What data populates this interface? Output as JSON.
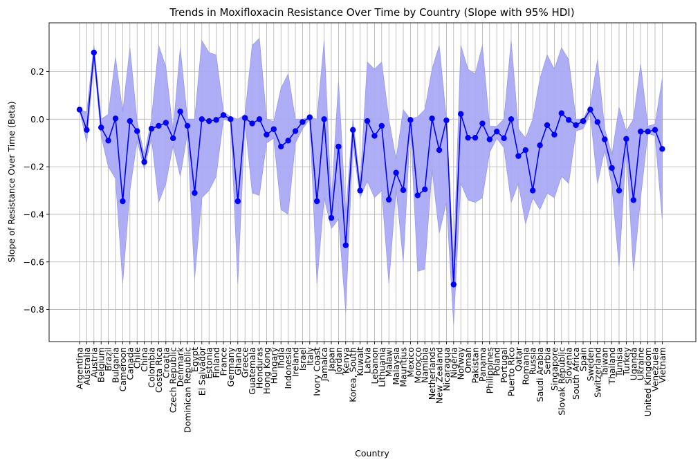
{
  "chart_data": {
    "type": "line",
    "title": "Trends in Moxifloxacin Resistance Over Time by Country (Slope with 95% HDI)",
    "xlabel": "Country",
    "ylabel": "Slope of Resistance Over Time (Beta)",
    "ylim": [
      -0.935,
      0.405
    ],
    "yticks": [
      -0.8,
      -0.6,
      -0.4,
      -0.2,
      0.0,
      0.2
    ],
    "ytick_labels": [
      "−0.8",
      "−0.6",
      "−0.4",
      "−0.2",
      "0.0",
      "0.2"
    ],
    "grid": true,
    "line_color": "#0000ff",
    "band_color": "#aaaaf5",
    "categories": [
      "Argentina",
      "Australia",
      "Austria",
      "Belgium",
      "Brazil",
      "Bulgaria",
      "Cameroon",
      "Canada",
      "Chile",
      "China",
      "Colombia",
      "Costa Rica",
      "Croatia",
      "Czech Republic",
      "Denmark",
      "Dominican Republic",
      "Egypt",
      "El Salvador",
      "Estonia",
      "Finland",
      "France",
      "Germany",
      "Ghana",
      "Greece",
      "Guatemala",
      "Honduras",
      "Hong Kong",
      "Hungary",
      "India",
      "Indonesia",
      "Ireland",
      "Israel",
      "Italy",
      "Ivory Coast",
      "Jamaica",
      "Japan",
      "Jordan",
      "Kenya",
      "Korea, South",
      "Kuwait",
      "Latvia",
      "Lebanon",
      "Lithuania",
      "Malawi",
      "Malaysia",
      "Mauritius",
      "Mexico",
      "Morocco",
      "Namibia",
      "Netherlands",
      "New Zealand",
      "Nicaragua",
      "Nigeria",
      "Norway",
      "Oman",
      "Pakistan",
      "Panama",
      "Philippines",
      "Poland",
      "Portugal",
      "Puerto Rico",
      "Qatar",
      "Romania",
      "Russia",
      "Saudi Arabia",
      "Serbia",
      "Singapore",
      "Slovak Republic",
      "Slovenia",
      "South Africa",
      "Spain",
      "Sweden",
      "Switzerland",
      "Taiwan",
      "Thailand",
      "Tunisia",
      "Turkey",
      "Uganda",
      "Ukraine",
      "United Kingdom",
      "Venezuela",
      "Vietnam"
    ],
    "series": [
      {
        "values": [
          0.04,
          -0.045,
          0.28,
          -0.035,
          -0.09,
          0.003,
          -0.345,
          -0.008,
          -0.05,
          -0.18,
          -0.04,
          -0.028,
          -0.015,
          -0.08,
          0.032,
          -0.028,
          -0.31,
          0.0,
          -0.008,
          -0.003,
          0.017,
          0.0,
          -0.345,
          0.005,
          -0.018,
          0.0,
          -0.065,
          -0.042,
          -0.115,
          -0.09,
          -0.05,
          -0.012,
          0.008,
          -0.345,
          0.0,
          -0.415,
          -0.115,
          -0.53,
          -0.045,
          -0.3,
          -0.008,
          -0.07,
          -0.028,
          -0.338,
          -0.225,
          -0.298,
          -0.003,
          -0.32,
          -0.295,
          0.003,
          -0.13,
          -0.005,
          -0.695,
          0.022,
          -0.078,
          -0.078,
          -0.018,
          -0.085,
          -0.052,
          -0.08,
          0.0,
          -0.155,
          -0.13,
          -0.3,
          -0.11,
          -0.025,
          -0.065,
          0.025,
          -0.003,
          -0.025,
          -0.008,
          0.04,
          -0.012,
          -0.085,
          -0.205,
          -0.3,
          -0.083,
          -0.34,
          -0.052,
          -0.052,
          -0.045,
          -0.125
        ],
        "hdi_upper": [
          0.04,
          0.03,
          0.31,
          0.0,
          0.02,
          0.26,
          0.03,
          0.3,
          -0.01,
          -0.15,
          0.0,
          0.31,
          0.22,
          -0.05,
          0.3,
          0.0,
          0.0,
          0.33,
          0.28,
          0.27,
          0.03,
          0.01,
          0.0,
          0.02,
          0.31,
          0.34,
          0.0,
          -0.01,
          0.13,
          0.19,
          0.0,
          0.0,
          0.01,
          0.0,
          0.33,
          -0.35,
          0.16,
          -0.4,
          0.0,
          -0.27,
          0.24,
          0.21,
          0.24,
          0.0,
          -0.17,
          0.04,
          0.0,
          0.01,
          0.04,
          0.21,
          0.31,
          0.0,
          -0.6,
          0.31,
          0.21,
          0.19,
          0.31,
          -0.03,
          -0.03,
          0.0,
          0.33,
          -0.04,
          -0.08,
          0.0,
          0.17,
          0.27,
          0.21,
          0.3,
          0.25,
          0.0,
          0.0,
          0.06,
          0.25,
          -0.04,
          -0.15,
          0.05,
          -0.05,
          0.0,
          0.23,
          -0.03,
          -0.02,
          0.17
        ],
        "hdi_lower": [
          0.04,
          -0.1,
          0.25,
          -0.07,
          -0.2,
          -0.25,
          -0.69,
          -0.3,
          -0.09,
          -0.21,
          -0.08,
          -0.35,
          -0.27,
          -0.11,
          -0.24,
          -0.06,
          -0.67,
          -0.33,
          -0.3,
          -0.24,
          0.0,
          -0.01,
          -0.69,
          -0.01,
          -0.31,
          -0.32,
          -0.1,
          -0.08,
          -0.38,
          -0.4,
          -0.1,
          -0.04,
          0.0,
          -0.69,
          -0.33,
          -0.46,
          -0.42,
          -0.81,
          -0.1,
          -0.33,
          -0.26,
          -0.33,
          -0.3,
          -0.69,
          -0.29,
          -0.6,
          -0.03,
          -0.64,
          -0.63,
          -0.21,
          -0.48,
          -0.35,
          -0.86,
          -0.27,
          -0.34,
          -0.35,
          -0.33,
          -0.14,
          -0.08,
          -0.12,
          -0.35,
          -0.27,
          -0.44,
          -0.33,
          -0.38,
          -0.31,
          -0.33,
          -0.24,
          -0.27,
          -0.05,
          -0.04,
          0.02,
          -0.27,
          -0.13,
          -0.28,
          -0.62,
          -0.12,
          -0.64,
          -0.33,
          -0.06,
          -0.07,
          -0.42
        ]
      }
    ]
  }
}
